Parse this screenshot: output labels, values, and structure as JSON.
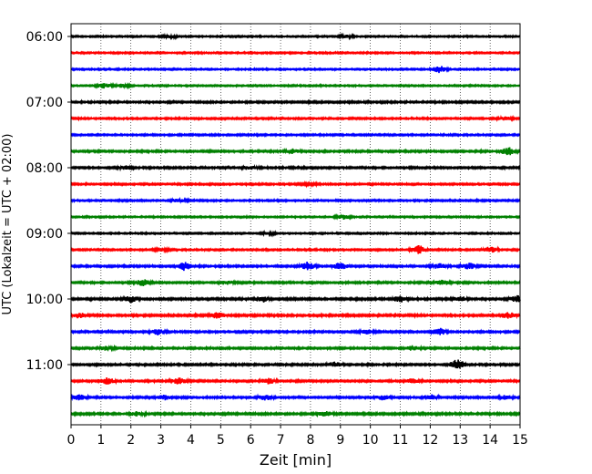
{
  "chart_data": {
    "type": "line",
    "title": "",
    "xlabel": "Zeit  [min]",
    "ylabel": "UTC (Lokalzeit = UTC + 02:00)",
    "xlim": [
      0,
      15
    ],
    "x_ticks": [
      0,
      1,
      2,
      3,
      4,
      5,
      6,
      7,
      8,
      9,
      10,
      11,
      12,
      13,
      14,
      15
    ],
    "x_tick_labels": [
      "0",
      "1",
      "2",
      "3",
      "4",
      "5",
      "6",
      "7",
      "8",
      "9",
      "10",
      "11",
      "12",
      "13",
      "14",
      "15"
    ],
    "y_tick_labels": [
      "06:00",
      "07:00",
      "08:00",
      "09:00",
      "10:00",
      "11:00"
    ],
    "grid": "vertical dotted at each minute",
    "trace_colors": [
      "#000000",
      "#ff0000",
      "#0000ff",
      "#008000"
    ],
    "traces": [
      {
        "start": "06:00",
        "color": "#000000",
        "noise": 0.8,
        "bursts": [
          [
            3.3,
            0.8
          ],
          [
            9.2,
            0.7
          ]
        ]
      },
      {
        "start": "06:15",
        "color": "#ff0000",
        "noise": 0.8,
        "bursts": []
      },
      {
        "start": "06:30",
        "color": "#0000ff",
        "noise": 0.8,
        "bursts": [
          [
            12.3,
            1.8
          ]
        ]
      },
      {
        "start": "06:45",
        "color": "#008000",
        "noise": 0.8,
        "bursts": [
          [
            1.1,
            1.2
          ],
          [
            1.7,
            0.9
          ]
        ]
      },
      {
        "start": "07:00",
        "color": "#000000",
        "noise": 1.0,
        "bursts": []
      },
      {
        "start": "07:15",
        "color": "#ff0000",
        "noise": 0.9,
        "bursts": [
          [
            14.5,
            0.8
          ]
        ]
      },
      {
        "start": "07:30",
        "color": "#0000ff",
        "noise": 0.9,
        "bursts": []
      },
      {
        "start": "07:45",
        "color": "#008000",
        "noise": 1.0,
        "bursts": [
          [
            7.4,
            1.0
          ],
          [
            14.6,
            1.8
          ]
        ]
      },
      {
        "start": "08:00",
        "color": "#000000",
        "noise": 1.0,
        "bursts": [
          [
            1.8,
            0.8
          ],
          [
            6.0,
            0.9
          ]
        ]
      },
      {
        "start": "08:15",
        "color": "#ff0000",
        "noise": 0.9,
        "bursts": [
          [
            8.0,
            0.6
          ]
        ]
      },
      {
        "start": "08:30",
        "color": "#0000ff",
        "noise": 0.9,
        "bursts": [
          [
            3.6,
            0.8
          ]
        ]
      },
      {
        "start": "08:45",
        "color": "#008000",
        "noise": 0.8,
        "bursts": [
          [
            9.1,
            1.0
          ]
        ]
      },
      {
        "start": "09:00",
        "color": "#000000",
        "noise": 0.8,
        "bursts": [
          [
            6.6,
            0.6
          ]
        ]
      },
      {
        "start": "09:15",
        "color": "#ff0000",
        "noise": 0.9,
        "bursts": [
          [
            11.6,
            2.2
          ],
          [
            14.0,
            1.4
          ],
          [
            3.0,
            0.7
          ]
        ]
      },
      {
        "start": "09:30",
        "color": "#0000ff",
        "noise": 1.0,
        "bursts": [
          [
            3.8,
            2.2
          ],
          [
            7.9,
            2.0
          ],
          [
            9.0,
            1.6
          ],
          [
            12.3,
            1.2
          ],
          [
            13.3,
            1.4
          ]
        ]
      },
      {
        "start": "09:45",
        "color": "#008000",
        "noise": 1.0,
        "bursts": [
          [
            2.4,
            1.6
          ],
          [
            5.2,
            0.9
          ],
          [
            12.4,
            1.2
          ]
        ]
      },
      {
        "start": "10:00",
        "color": "#000000",
        "noise": 1.1,
        "bursts": [
          [
            2.0,
            1.6
          ],
          [
            6.4,
            1.4
          ],
          [
            11.0,
            1.6
          ],
          [
            14.9,
            1.6
          ],
          [
            13.0,
            1.2
          ]
        ]
      },
      {
        "start": "10:15",
        "color": "#ff0000",
        "noise": 1.1,
        "bursts": [
          [
            4.9,
            1.6
          ],
          [
            14.6,
            1.4
          ],
          [
            0.3,
            1.2
          ]
        ]
      },
      {
        "start": "10:30",
        "color": "#0000ff",
        "noise": 1.0,
        "bursts": [
          [
            2.9,
            1.3
          ],
          [
            12.3,
            1.8
          ],
          [
            9.9,
            1.0
          ]
        ]
      },
      {
        "start": "10:45",
        "color": "#008000",
        "noise": 1.0,
        "bursts": [
          [
            1.2,
            1.0
          ],
          [
            11.4,
            1.2
          ]
        ]
      },
      {
        "start": "11:00",
        "color": "#000000",
        "noise": 1.0,
        "bursts": [
          [
            12.9,
            2.4
          ],
          [
            8.8,
            1.2
          ]
        ]
      },
      {
        "start": "11:15",
        "color": "#ff0000",
        "noise": 1.0,
        "bursts": [
          [
            1.2,
            1.6
          ],
          [
            3.6,
            1.4
          ],
          [
            6.6,
            1.4
          ],
          [
            11.4,
            1.0
          ]
        ]
      },
      {
        "start": "11:30",
        "color": "#0000ff",
        "noise": 1.0,
        "bursts": [
          [
            0.3,
            1.4
          ],
          [
            3.1,
            1.2
          ],
          [
            6.5,
            1.2
          ],
          [
            10.4,
            1.2
          ],
          [
            12.0,
            1.3
          ],
          [
            14.5,
            1.0
          ]
        ]
      },
      {
        "start": "11:45",
        "color": "#008000",
        "noise": 1.1,
        "bursts": [
          [
            8.5,
            1.2
          ],
          [
            2.2,
            1.0
          ]
        ]
      }
    ]
  }
}
